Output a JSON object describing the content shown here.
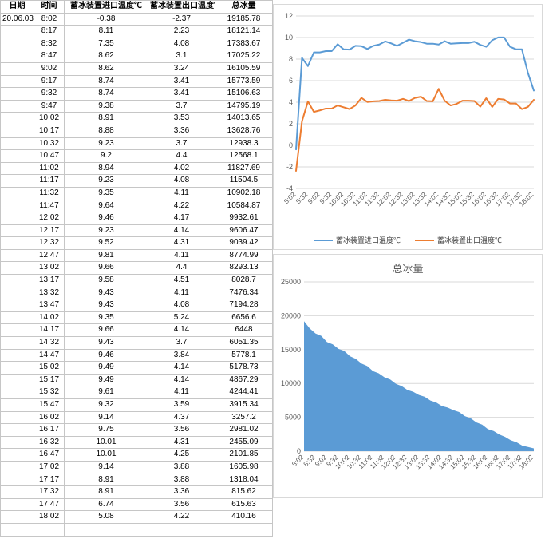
{
  "table": {
    "headers": [
      "日期",
      "时间",
      "蓄冰装置进口温度℃",
      "蓄冰装置出口温度℃",
      "总冰量"
    ],
    "date": "20.06.03",
    "rows": [
      [
        "8:02",
        -0.38,
        -2.37,
        19185.78
      ],
      [
        "8:17",
        8.11,
        2.23,
        18121.14
      ],
      [
        "8:32",
        7.35,
        4.08,
        17383.67
      ],
      [
        "8:47",
        8.62,
        3.1,
        17025.22
      ],
      [
        "9:02",
        8.62,
        3.24,
        16105.59
      ],
      [
        "9:17",
        8.74,
        3.41,
        15773.59
      ],
      [
        "9:32",
        8.74,
        3.41,
        15106.63
      ],
      [
        "9:47",
        9.38,
        3.7,
        14795.19
      ],
      [
        "10:02",
        8.91,
        3.53,
        14013.65
      ],
      [
        "10:17",
        8.88,
        3.36,
        13628.76
      ],
      [
        "10:32",
        9.23,
        3.7,
        12938.3
      ],
      [
        "10:47",
        9.2,
        4.4,
        12568.1
      ],
      [
        "11:02",
        8.94,
        4.02,
        11827.69
      ],
      [
        "11:17",
        9.23,
        4.08,
        11504.5
      ],
      [
        "11:32",
        9.35,
        4.11,
        10902.18
      ],
      [
        "11:47",
        9.64,
        4.22,
        10584.87
      ],
      [
        "12:02",
        9.46,
        4.17,
        9932.61
      ],
      [
        "12:17",
        9.23,
        4.14,
        9606.47
      ],
      [
        "12:32",
        9.52,
        4.31,
        9039.42
      ],
      [
        "12:47",
        9.81,
        4.11,
        8774.99
      ],
      [
        "13:02",
        9.66,
        4.4,
        8293.13
      ],
      [
        "13:17",
        9.58,
        4.51,
        8028.7
      ],
      [
        "13:32",
        9.43,
        4.11,
        7476.34
      ],
      [
        "13:47",
        9.43,
        4.08,
        7194.28
      ],
      [
        "14:02",
        9.35,
        5.24,
        6656.6
      ],
      [
        "14:17",
        9.66,
        4.14,
        6448
      ],
      [
        "14:32",
        9.43,
        3.7,
        6051.35
      ],
      [
        "14:47",
        9.46,
        3.84,
        5778.1
      ],
      [
        "15:02",
        9.49,
        4.14,
        5178.73
      ],
      [
        "15:17",
        9.49,
        4.14,
        4867.29
      ],
      [
        "15:32",
        9.61,
        4.11,
        4244.41
      ],
      [
        "15:47",
        9.32,
        3.59,
        3915.34
      ],
      [
        "16:02",
        9.14,
        4.37,
        3257.2
      ],
      [
        "16:17",
        9.75,
        3.56,
        2981.02
      ],
      [
        "16:32",
        10.01,
        4.31,
        2455.09
      ],
      [
        "16:47",
        10.01,
        4.25,
        2101.85
      ],
      [
        "17:02",
        9.14,
        3.88,
        1605.98
      ],
      [
        "17:17",
        8.91,
        3.88,
        1318.04
      ],
      [
        "17:32",
        8.91,
        3.36,
        815.62
      ],
      [
        "17:47",
        6.74,
        3.56,
        615.63
      ],
      [
        "18:02",
        5.08,
        4.22,
        410.16
      ]
    ]
  },
  "chart_data": [
    {
      "type": "line",
      "x": [
        "8:02",
        "8:17",
        "8:32",
        "8:47",
        "9:02",
        "9:17",
        "9:32",
        "9:47",
        "10:02",
        "10:17",
        "10:32",
        "10:47",
        "11:02",
        "11:17",
        "11:32",
        "11:47",
        "12:02",
        "12:17",
        "12:32",
        "12:47",
        "13:02",
        "13:17",
        "13:32",
        "13:47",
        "14:02",
        "14:17",
        "14:32",
        "14:47",
        "15:02",
        "15:17",
        "15:32",
        "15:47",
        "16:02",
        "16:17",
        "16:32",
        "16:47",
        "17:02",
        "17:17",
        "17:32",
        "17:47",
        "18:02"
      ],
      "series": [
        {
          "name": "蓄冰装置进口温度℃",
          "color": "#5B9BD5",
          "values": [
            -0.38,
            8.11,
            7.35,
            8.62,
            8.62,
            8.74,
            8.74,
            9.38,
            8.91,
            8.88,
            9.23,
            9.2,
            8.94,
            9.23,
            9.35,
            9.64,
            9.46,
            9.23,
            9.52,
            9.81,
            9.66,
            9.58,
            9.43,
            9.43,
            9.35,
            9.66,
            9.43,
            9.46,
            9.49,
            9.49,
            9.61,
            9.32,
            9.14,
            9.75,
            10.01,
            10.01,
            9.14,
            8.91,
            8.91,
            6.74,
            5.08
          ]
        },
        {
          "name": "蓄冰装置出口温度℃",
          "color": "#ED7D31",
          "values": [
            -2.37,
            2.23,
            4.08,
            3.1,
            3.24,
            3.41,
            3.41,
            3.7,
            3.53,
            3.36,
            3.7,
            4.4,
            4.02,
            4.08,
            4.11,
            4.22,
            4.17,
            4.14,
            4.31,
            4.11,
            4.4,
            4.51,
            4.11,
            4.08,
            5.24,
            4.14,
            3.7,
            3.84,
            4.14,
            4.14,
            4.11,
            3.59,
            4.37,
            3.56,
            4.31,
            4.25,
            3.88,
            3.88,
            3.36,
            3.56,
            4.22
          ]
        }
      ],
      "title": "",
      "xlabel": "",
      "ylabel": "",
      "ylim": [
        -4,
        12
      ],
      "ytick_step": 2,
      "xtick_every": 2,
      "grid": true,
      "legend_position": "bottom"
    },
    {
      "type": "area",
      "title": "总冰量",
      "x": [
        "8:02",
        "8:17",
        "8:32",
        "8:47",
        "9:02",
        "9:17",
        "9:32",
        "9:47",
        "10:02",
        "10:17",
        "10:32",
        "10:47",
        "11:02",
        "11:17",
        "11:32",
        "11:47",
        "12:02",
        "12:17",
        "12:32",
        "12:47",
        "13:02",
        "13:17",
        "13:32",
        "13:47",
        "14:02",
        "14:17",
        "14:32",
        "14:47",
        "15:02",
        "15:17",
        "15:32",
        "15:47",
        "16:02",
        "16:17",
        "16:32",
        "16:47",
        "17:02",
        "17:17",
        "17:32",
        "17:47",
        "18:02"
      ],
      "values": [
        19185.78,
        18121.14,
        17383.67,
        17025.22,
        16105.59,
        15773.59,
        15106.63,
        14795.19,
        14013.65,
        13628.76,
        12938.3,
        12568.1,
        11827.69,
        11504.5,
        10902.18,
        10584.87,
        9932.61,
        9606.47,
        9039.42,
        8774.99,
        8293.13,
        8028.7,
        7476.34,
        7194.28,
        6656.6,
        6448,
        6051.35,
        5778.1,
        5178.73,
        4867.29,
        4244.41,
        3915.34,
        3257.2,
        2981.02,
        2455.09,
        2101.85,
        1605.98,
        1318.04,
        815.62,
        615.63,
        410.16
      ],
      "color": "#5B9BD5",
      "xlabel": "",
      "ylabel": "",
      "ylim": [
        0,
        25000
      ],
      "ytick_step": 5000,
      "xtick_every": 2,
      "grid": true,
      "legend_position": "none"
    }
  ],
  "colors": {
    "inlet_line": "#5B9BD5",
    "outlet_line": "#ED7D31",
    "area_fill": "#5B9BD5",
    "gridline": "#d9d9d9",
    "axis_text": "#595959",
    "cell_border": "#c6c6c6"
  }
}
